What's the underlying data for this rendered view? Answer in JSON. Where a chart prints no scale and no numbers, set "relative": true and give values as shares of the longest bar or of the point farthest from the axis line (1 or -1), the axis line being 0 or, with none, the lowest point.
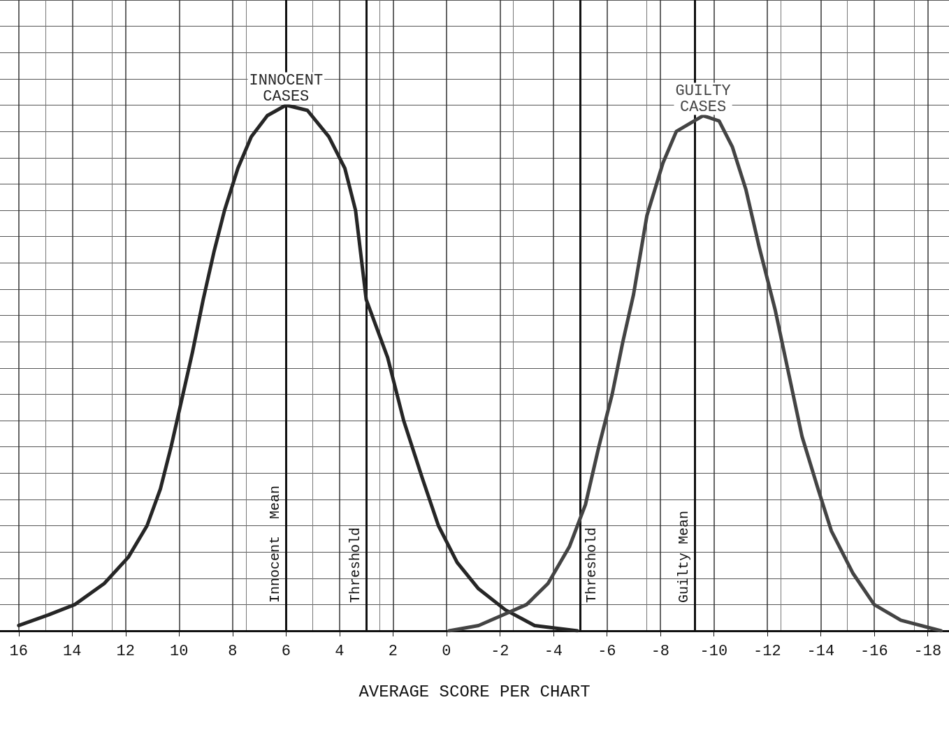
{
  "chart_data": {
    "type": "line",
    "relative": true,
    "xlabel": "AVERAGE SCORE PER CHART",
    "xlim": [
      16.7,
      -18.8
    ],
    "xticks": [
      16,
      14,
      12,
      10,
      8,
      6,
      4,
      2,
      0,
      -2,
      -4,
      -6,
      -8,
      -10,
      -12,
      -14,
      -16,
      -18
    ],
    "grid": true,
    "legend": false,
    "marker": "none",
    "line_style": "solid",
    "tick_labels": "x",
    "series": [
      {
        "name": "INNOCENT CASES",
        "color": "#262626",
        "x": [
          16.0,
          14.9,
          13.9,
          12.8,
          11.9,
          11.2,
          10.7,
          10.3,
          9.9,
          9.5,
          9.1,
          8.7,
          8.3,
          7.8,
          7.3,
          6.7,
          6.0,
          5.2,
          4.4,
          3.8,
          3.4,
          3.0,
          2.2,
          1.6,
          0.9,
          0.3,
          -0.4,
          -1.2,
          -2.2,
          -3.3,
          -4.9
        ],
        "values": [
          0.01,
          0.03,
          0.05,
          0.09,
          0.14,
          0.2,
          0.27,
          0.35,
          0.44,
          0.53,
          0.63,
          0.72,
          0.8,
          0.88,
          0.94,
          0.98,
          1,
          0.99,
          0.94,
          0.88,
          0.8,
          0.63,
          0.52,
          0.4,
          0.29,
          0.2,
          0.13,
          0.08,
          0.04,
          0.01,
          0
        ]
      },
      {
        "name": "GUILTY CASES",
        "color": "#444444",
        "x": [
          -0.1,
          -1.2,
          -2.1,
          -3.0,
          -3.8,
          -4.6,
          -5.2,
          -5.7,
          -6.2,
          -6.6,
          -7.0,
          -7.5,
          -8.1,
          -8.6,
          -9.6,
          -10.2,
          -10.7,
          -11.2,
          -11.7,
          -12.3,
          -12.8,
          -13.3,
          -13.9,
          -14.4,
          -15.2,
          -16.0,
          -17.0,
          -18.5
        ],
        "values": [
          0,
          0.01,
          0.03,
          0.05,
          0.09,
          0.16,
          0.24,
          0.35,
          0.45,
          0.55,
          0.64,
          0.79,
          0.89,
          0.95,
          0.98,
          0.97,
          0.92,
          0.84,
          0.73,
          0.61,
          0.49,
          0.37,
          0.27,
          0.19,
          0.11,
          0.05,
          0.02,
          0
        ]
      }
    ],
    "ref_lines": [
      {
        "axis": "x",
        "value": 6,
        "label": "Innocent  Mean",
        "color": "#111111"
      },
      {
        "axis": "x",
        "value": 3,
        "label": "Threshold",
        "color": "#111111"
      },
      {
        "axis": "x",
        "value": -5,
        "label": "Threshold",
        "color": "#111111"
      },
      {
        "axis": "x",
        "value": -9.3,
        "label": "Guilty Mean",
        "color": "#111111"
      }
    ]
  }
}
